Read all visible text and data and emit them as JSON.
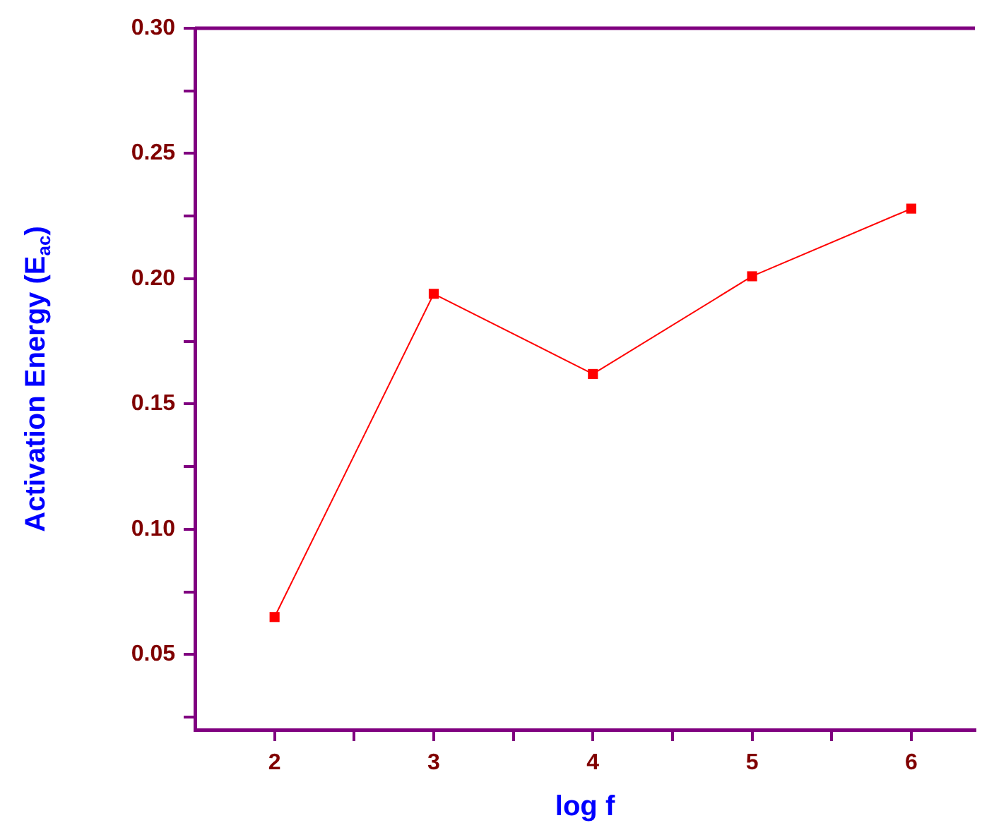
{
  "chart_data": {
    "type": "line",
    "xlabel": "log f",
    "ylabel": "Activation Energy (E$_{ac}$)",
    "x": [
      2,
      3,
      4,
      5,
      6
    ],
    "series": [
      {
        "color": "#ff0000",
        "values": [
          0.065,
          0.194,
          0.162,
          0.201,
          0.228
        ]
      }
    ],
    "xlim": [
      1.5,
      6.4
    ],
    "xticks": [
      2,
      {
        "value": 2.5,
        "label": null
      },
      3,
      {
        "value": 3.5,
        "label": null
      },
      4,
      {
        "value": 4.5,
        "label": null
      },
      5,
      {
        "value": 5.5,
        "label": null
      },
      6
    ],
    "ylim": [
      0.02,
      0.3
    ],
    "yticks": [
      {
        "value": 0.025,
        "label": null
      },
      0.05,
      {
        "value": 0.075,
        "label": null
      },
      {
        "value": 0.1,
        "label": "0.10"
      },
      {
        "value": 0.125,
        "label": null
      },
      0.15,
      {
        "value": 0.175,
        "label": null
      },
      {
        "value": 0.2,
        "label": "0.20"
      },
      {
        "value": 0.225,
        "label": null
      },
      0.25,
      {
        "value": 0.275,
        "label": null
      },
      {
        "value": 0.3,
        "label": "0.30"
      }
    ],
    "marker": "square",
    "line_style": "solid",
    "grid": false,
    "legend": false
  }
}
